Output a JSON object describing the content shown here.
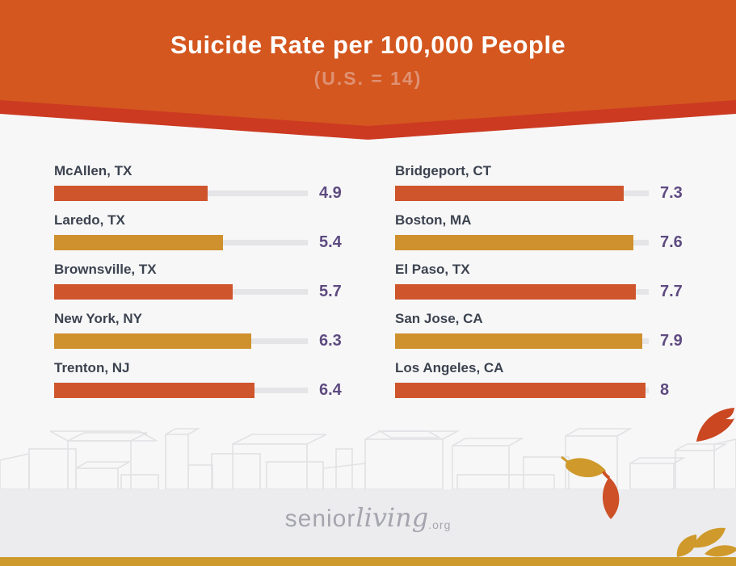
{
  "header": {
    "title": "Suicide Rate per 100,000 People",
    "subtitle": "(U.S. = 14)"
  },
  "chart_data": {
    "type": "bar",
    "orientation": "horizontal",
    "title": "Suicide Rate per 100,000 People",
    "subtitle": "(U.S. = 14)",
    "us_baseline": 14,
    "xlim": [
      0,
      8.1
    ],
    "categories": [
      "McAllen, TX",
      "Laredo, TX",
      "Brownsville, TX",
      "New York, NY",
      "Trenton, NJ",
      "Bridgeport, CT",
      "Boston, MA",
      "El Paso, TX",
      "San Jose, CA",
      "Los Angeles, CA"
    ],
    "values": [
      4.9,
      5.4,
      5.7,
      6.3,
      6.4,
      7.3,
      7.6,
      7.7,
      7.9,
      8
    ],
    "bar_color_pattern": [
      "orange",
      "gold"
    ],
    "layout": {
      "columns": 2,
      "rows_per_column": 5,
      "legend": false,
      "grid": false,
      "value_labels": "right"
    }
  },
  "footer": {
    "logo": {
      "senior": "senior",
      "living": "living",
      "org": ".org"
    }
  },
  "colors": {
    "page_bg": "#f7f7f8",
    "header_bg": "#d4571f",
    "header_chevron": "#cc3a22",
    "subtitle_text": "#df9173",
    "label_text": "#3c434f",
    "value_text": "#5e4b80",
    "bar_orange": "#cf552c",
    "bar_gold": "#cf902e",
    "bar_track": "#e5e5e7",
    "bottom_bar": "#cf9a2c",
    "leaf_red": "#ca4721",
    "leaf_orange": "#cd5026",
    "leaf_gold": "#cf9a2b",
    "skyline_line": "#e2e2e5",
    "logo_text": "#a5a5af"
  }
}
